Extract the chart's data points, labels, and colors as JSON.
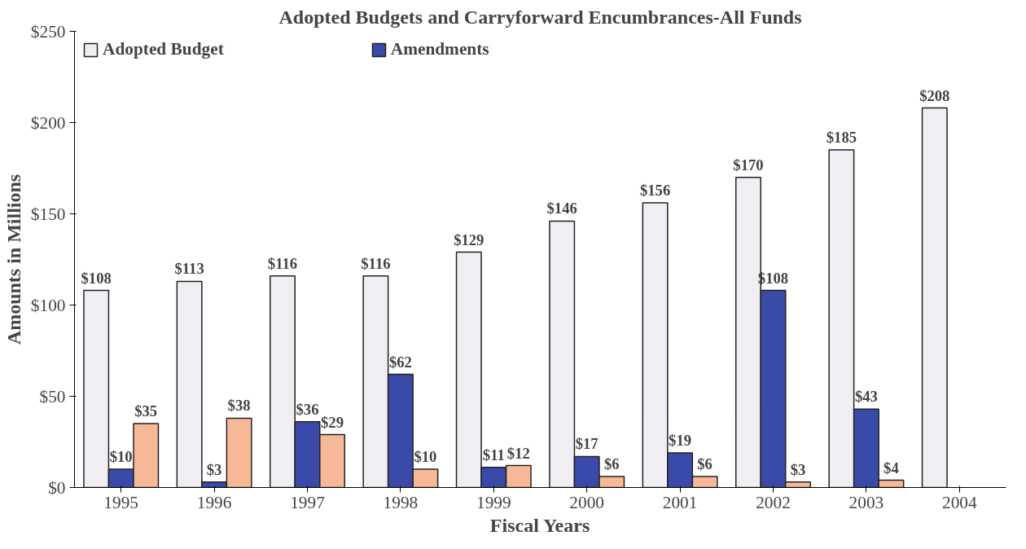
{
  "chart_data": {
    "type": "bar",
    "title": "Adopted Budgets and Carryforward Encumbrances-All Funds",
    "xlabel": "Fiscal Years",
    "ylabel": "Amounts in Millions",
    "categories": [
      "1995",
      "1996",
      "1997",
      "1998",
      "1999",
      "2000",
      "2001",
      "2002",
      "2003",
      "2004"
    ],
    "series": [
      {
        "name": "Adopted Budget",
        "color": "#f0eef2",
        "values": [
          108,
          113,
          116,
          116,
          129,
          146,
          156,
          170,
          185,
          208
        ],
        "value_labels": [
          "$108",
          "$113",
          "$116",
          "$116",
          "$129",
          "$146",
          "$156",
          "$170",
          "$185",
          "$208"
        ]
      },
      {
        "name": "Amendments",
        "color": "#3a4aa8",
        "values": [
          10,
          3,
          36,
          62,
          11,
          17,
          19,
          108,
          43,
          null
        ],
        "value_labels": [
          "$10",
          "$3",
          "$36",
          "$62",
          "$11",
          "$17",
          "$19",
          "$108",
          "$43",
          null
        ]
      },
      {
        "color": "#f6b896",
        "values": [
          35,
          38,
          29,
          10,
          12,
          6,
          6,
          3,
          4,
          null
        ],
        "value_labels": [
          "$35",
          "$38",
          "$29",
          "$10",
          "$12",
          "$6",
          "$6",
          "$3",
          "$4",
          null
        ]
      }
    ],
    "ylim": [
      0,
      250
    ],
    "yticks": [
      {
        "value": 0,
        "label": "$0"
      },
      {
        "value": 50,
        "label": "$50"
      },
      {
        "value": 100,
        "label": "$100"
      },
      {
        "value": 150,
        "label": "$150"
      },
      {
        "value": 200,
        "label": "$200"
      },
      {
        "value": 250,
        "label": "$250"
      }
    ],
    "grid": false,
    "legend": "top left"
  }
}
